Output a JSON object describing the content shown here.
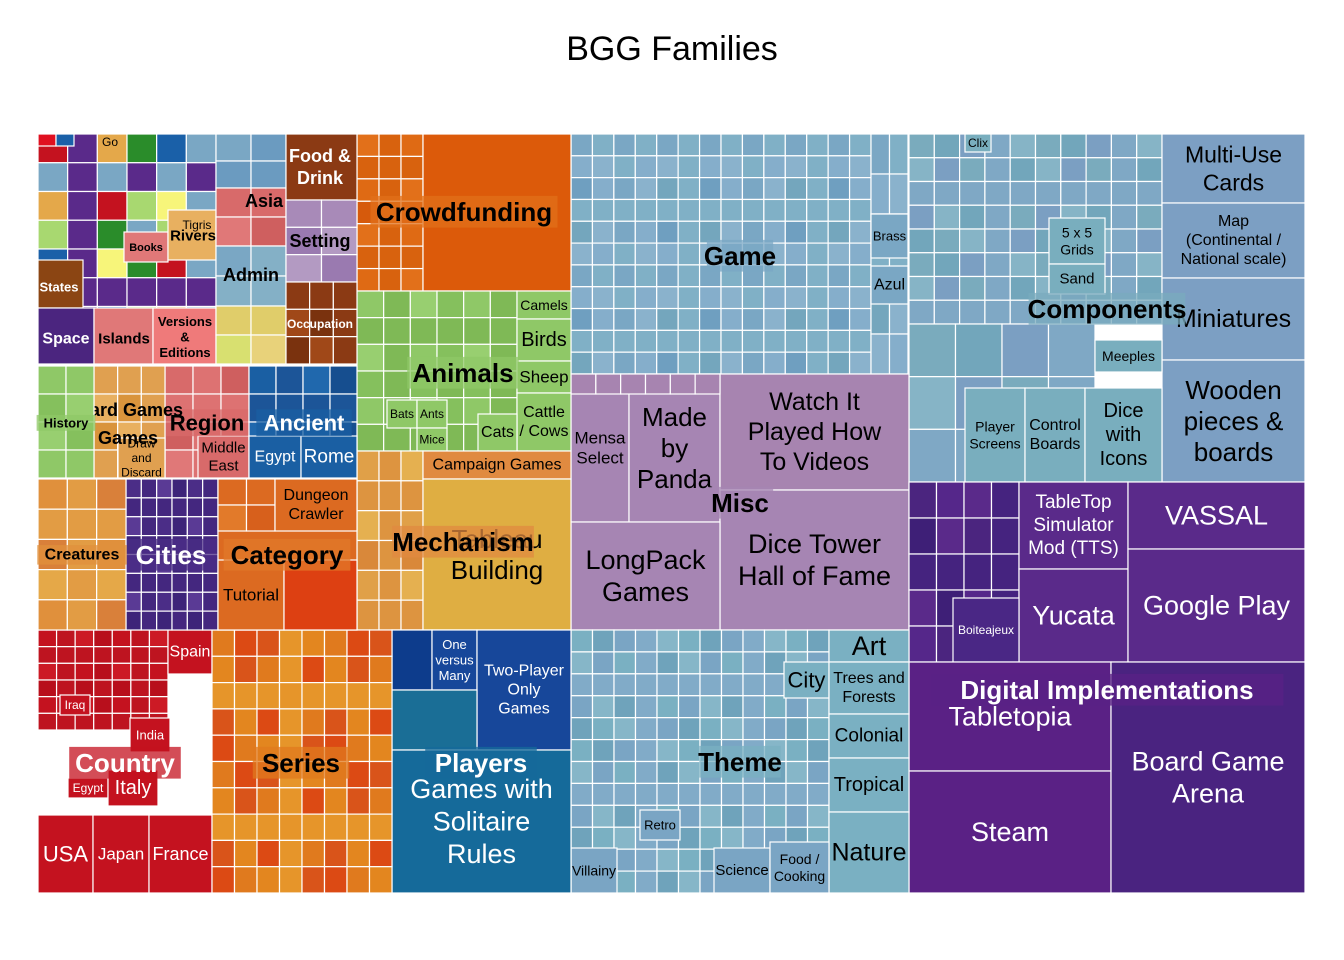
{
  "chart_data": {
    "type": "treemap",
    "title": "BGG Families",
    "groups": [
      {
        "name": "Game",
        "value": 8.0,
        "label_color": "#000000",
        "leaves": [
          {
            "name": "Brass",
            "value": 0.1,
            "color": "#7aa7c4"
          },
          {
            "name": "Azul",
            "value": 0.1,
            "color": "#7aa7c4"
          }
        ]
      },
      {
        "name": "Components",
        "value": 7.0,
        "label_color": "#000000",
        "leaves": [
          {
            "name": "Multi-Use Cards",
            "value": 0.5,
            "color": "#7c9fc3"
          },
          {
            "name": "Map (Continental / National scale)",
            "value": 0.4,
            "color": "#7c9fc3"
          },
          {
            "name": "Miniatures",
            "value": 0.4,
            "color": "#7c9fc3"
          },
          {
            "name": "Wooden pieces & boards",
            "value": 0.9,
            "color": "#7c9fc3"
          },
          {
            "name": "Clix",
            "value": 0.05,
            "color": "#79aebe"
          },
          {
            "name": "5 x 5 Grids",
            "value": 0.1,
            "color": "#79aebe"
          },
          {
            "name": "Sand",
            "value": 0.05,
            "color": "#79aebe"
          },
          {
            "name": "Meeples",
            "value": 0.1,
            "color": "#79aebe"
          },
          {
            "name": "Player Screens",
            "value": 0.15,
            "color": "#79aebe"
          },
          {
            "name": "Control Boards",
            "value": 0.15,
            "color": "#79aebe"
          },
          {
            "name": "Dice with Icons",
            "value": 0.2,
            "color": "#79aebe"
          }
        ]
      },
      {
        "name": "Misc",
        "value": 5.0,
        "label_color": "#000000",
        "leaves": [
          {
            "name": "Watch It Played How To Videos",
            "value": 1.1,
            "color": "#a784b0"
          },
          {
            "name": "Made by Panda",
            "value": 0.5,
            "color": "#a685b3"
          },
          {
            "name": "Mensa Select",
            "value": 0.3,
            "color": "#a685b3"
          },
          {
            "name": "Dice Tower Hall of Fame",
            "value": 1.1,
            "color": "#a685b3"
          },
          {
            "name": "LongPack Games",
            "value": 0.9,
            "color": "#a685b3"
          }
        ]
      },
      {
        "name": "Digital Implementations",
        "value": 6.0,
        "label_color": "#ffffff",
        "leaves": [
          {
            "name": "TableTop Simulator Mod (TTS)",
            "value": 0.5,
            "color": "#5a2a8a"
          },
          {
            "name": "VASSAL",
            "value": 0.6,
            "color": "#5a2a8a"
          },
          {
            "name": "Yucata",
            "value": 0.5,
            "color": "#5a2a8a"
          },
          {
            "name": "Google Play",
            "value": 0.9,
            "color": "#5a2a8a"
          },
          {
            "name": "Boiteajeux",
            "value": 0.2,
            "color": "#4a2785"
          },
          {
            "name": "Tabletopia",
            "value": 0.9,
            "color": "#5a2185"
          },
          {
            "name": "Steam",
            "value": 0.9,
            "color": "#5a2185"
          },
          {
            "name": "Board Game Arena",
            "value": 1.6,
            "color": "#4a2380"
          }
        ]
      },
      {
        "name": "Theme",
        "value": 5.0,
        "label_color": "#000000",
        "leaves": [
          {
            "name": "Art",
            "value": 0.2,
            "color": "#7ab0c2"
          },
          {
            "name": "City",
            "value": 0.2,
            "color": "#7ab0c2"
          },
          {
            "name": "Trees and Forests",
            "value": 0.2,
            "color": "#7ab0c2"
          },
          {
            "name": "Colonial",
            "value": 0.2,
            "color": "#7ab0c2"
          },
          {
            "name": "Tropical",
            "value": 0.2,
            "color": "#7ab0c2"
          },
          {
            "name": "Nature",
            "value": 0.3,
            "color": "#7ab0c2"
          },
          {
            "name": "Retro",
            "value": 0.1,
            "color": "#7aa5c4"
          },
          {
            "name": "Villainy",
            "value": 0.1,
            "color": "#7aa5c4"
          },
          {
            "name": "Science",
            "value": 0.1,
            "color": "#7aa5c4"
          },
          {
            "name": "Food / Cooking",
            "value": 0.1,
            "color": "#7aa5c4"
          }
        ]
      },
      {
        "name": "Crowdfunding",
        "value": 2.5,
        "label_color": "#000000",
        "leaves": []
      },
      {
        "name": "Animals",
        "value": 2.3,
        "label_color": "#000000",
        "leaves": [
          {
            "name": "Camels",
            "value": 0.1,
            "color": "#8fc867"
          },
          {
            "name": "Birds",
            "value": 0.15,
            "color": "#8fc867"
          },
          {
            "name": "Sheep",
            "value": 0.1,
            "color": "#8fc867"
          },
          {
            "name": "Cattle / Cows",
            "value": 0.15,
            "color": "#8fc867"
          },
          {
            "name": "Cats",
            "value": 0.1,
            "color": "#8fc867"
          },
          {
            "name": "Bats",
            "value": 0.05,
            "color": "#8fc867"
          },
          {
            "name": "Ants",
            "value": 0.05,
            "color": "#8fc867"
          },
          {
            "name": "Mice",
            "value": 0.05,
            "color": "#8fc867"
          }
        ]
      },
      {
        "name": "Mechanism",
        "value": 2.8,
        "label_color": "#000000",
        "leaves": [
          {
            "name": "Campaign Games",
            "value": 0.2,
            "color": "#e08a40"
          },
          {
            "name": "Tableau Building",
            "value": 1.2,
            "color": "#dfae42"
          }
        ]
      },
      {
        "name": "Players",
        "value": 3.0,
        "label_color": "#ffffff",
        "leaves": [
          {
            "name": "One versus Many",
            "value": 0.2,
            "color": "#17479a"
          },
          {
            "name": "Two-Player Only Games",
            "value": 0.6,
            "color": "#17479a"
          },
          {
            "name": "Games with Solitaire Rules",
            "value": 1.3,
            "color": "#156a9a"
          }
        ]
      },
      {
        "name": "Country",
        "value": 3.0,
        "label_color": "#ffffff",
        "leaves": [
          {
            "name": "Spain",
            "value": 0.1,
            "color": "#c4121f"
          },
          {
            "name": "Iraq",
            "value": 0.05,
            "color": "#c4121f"
          },
          {
            "name": "India",
            "value": 0.1,
            "color": "#c4121f"
          },
          {
            "name": "Egypt",
            "value": 0.05,
            "color": "#c4121f"
          },
          {
            "name": "Italy",
            "value": 0.1,
            "color": "#c4121f"
          },
          {
            "name": "USA",
            "value": 0.2,
            "color": "#c4121f"
          },
          {
            "name": "Japan",
            "value": 0.2,
            "color": "#c4121f"
          },
          {
            "name": "France",
            "value": 0.25,
            "color": "#c4121f"
          }
        ]
      },
      {
        "name": "Series",
        "value": 2.9,
        "label_color": "#000000",
        "leaves": []
      },
      {
        "name": "Cities",
        "value": 1.2,
        "label_color": "#ffffff",
        "leaves": []
      },
      {
        "name": "Category",
        "value": 1.8,
        "label_color": "#000000",
        "leaves": [
          {
            "name": "Dungeon Crawler",
            "value": 0.2,
            "color": "#dc6a21"
          },
          {
            "name": "Tutorial",
            "value": 0.3,
            "color": "#dc6a21"
          }
        ]
      },
      {
        "name": "Creatures",
        "value": 1.1,
        "label_color": "#000000",
        "leaves": []
      },
      {
        "name": "Region",
        "value": 0.9,
        "label_color": "#000000",
        "leaves": [
          {
            "name": "Middle East",
            "value": 0.1,
            "color": "#d86a6a"
          }
        ]
      },
      {
        "name": "Ancient",
        "value": 0.8,
        "label_color": "#ffffff",
        "leaves": [
          {
            "name": "Egypt",
            "value": 0.1,
            "color": "#1a5fa3"
          },
          {
            "name": "Rome",
            "value": 0.1,
            "color": "#1a5fa3"
          }
        ]
      },
      {
        "name": "Card Games",
        "value": 0.5,
        "label_color": "#000000",
        "leaves": [
          {
            "name": "Draw and Discard",
            "value": 0.1,
            "color": "#e0a050"
          }
        ]
      },
      {
        "name": "History",
        "value": 0.3,
        "label_color": "#000000",
        "leaves": []
      },
      {
        "name": "Food & Drink",
        "value": 0.3,
        "label_color": "#ffffff",
        "leaves": []
      },
      {
        "name": "Setting",
        "value": 0.4,
        "label_color": "#000000",
        "leaves": []
      },
      {
        "name": "Asia",
        "value": 0.2,
        "label_color": "#000000",
        "leaves": []
      },
      {
        "name": "Admin",
        "value": 0.3,
        "label_color": "#000000",
        "leaves": []
      },
      {
        "name": "Occupation",
        "value": 0.2,
        "label_color": "#ffffff",
        "leaves": []
      },
      {
        "name": "Versions & Editions",
        "value": 0.1,
        "label_color": "#000000",
        "leaves": []
      },
      {
        "name": "Islands",
        "value": 0.1,
        "label_color": "#000000",
        "leaves": []
      },
      {
        "name": "Space",
        "value": 0.1,
        "label_color": "#ffffff",
        "leaves": []
      },
      {
        "name": "States",
        "value": 0.1,
        "label_color": "#ffffff",
        "leaves": []
      },
      {
        "name": "Books",
        "value": 0.1,
        "label_color": "#000000",
        "leaves": []
      },
      {
        "name": "Rivers",
        "value": 0.1,
        "label_color": "#000000",
        "leaves": [
          {
            "name": "Tigris",
            "value": 0.05,
            "color": "#d9c46a"
          }
        ]
      },
      {
        "name": "Go",
        "value": 0.05,
        "label_color": "#000000",
        "leaves": []
      }
    ]
  }
}
